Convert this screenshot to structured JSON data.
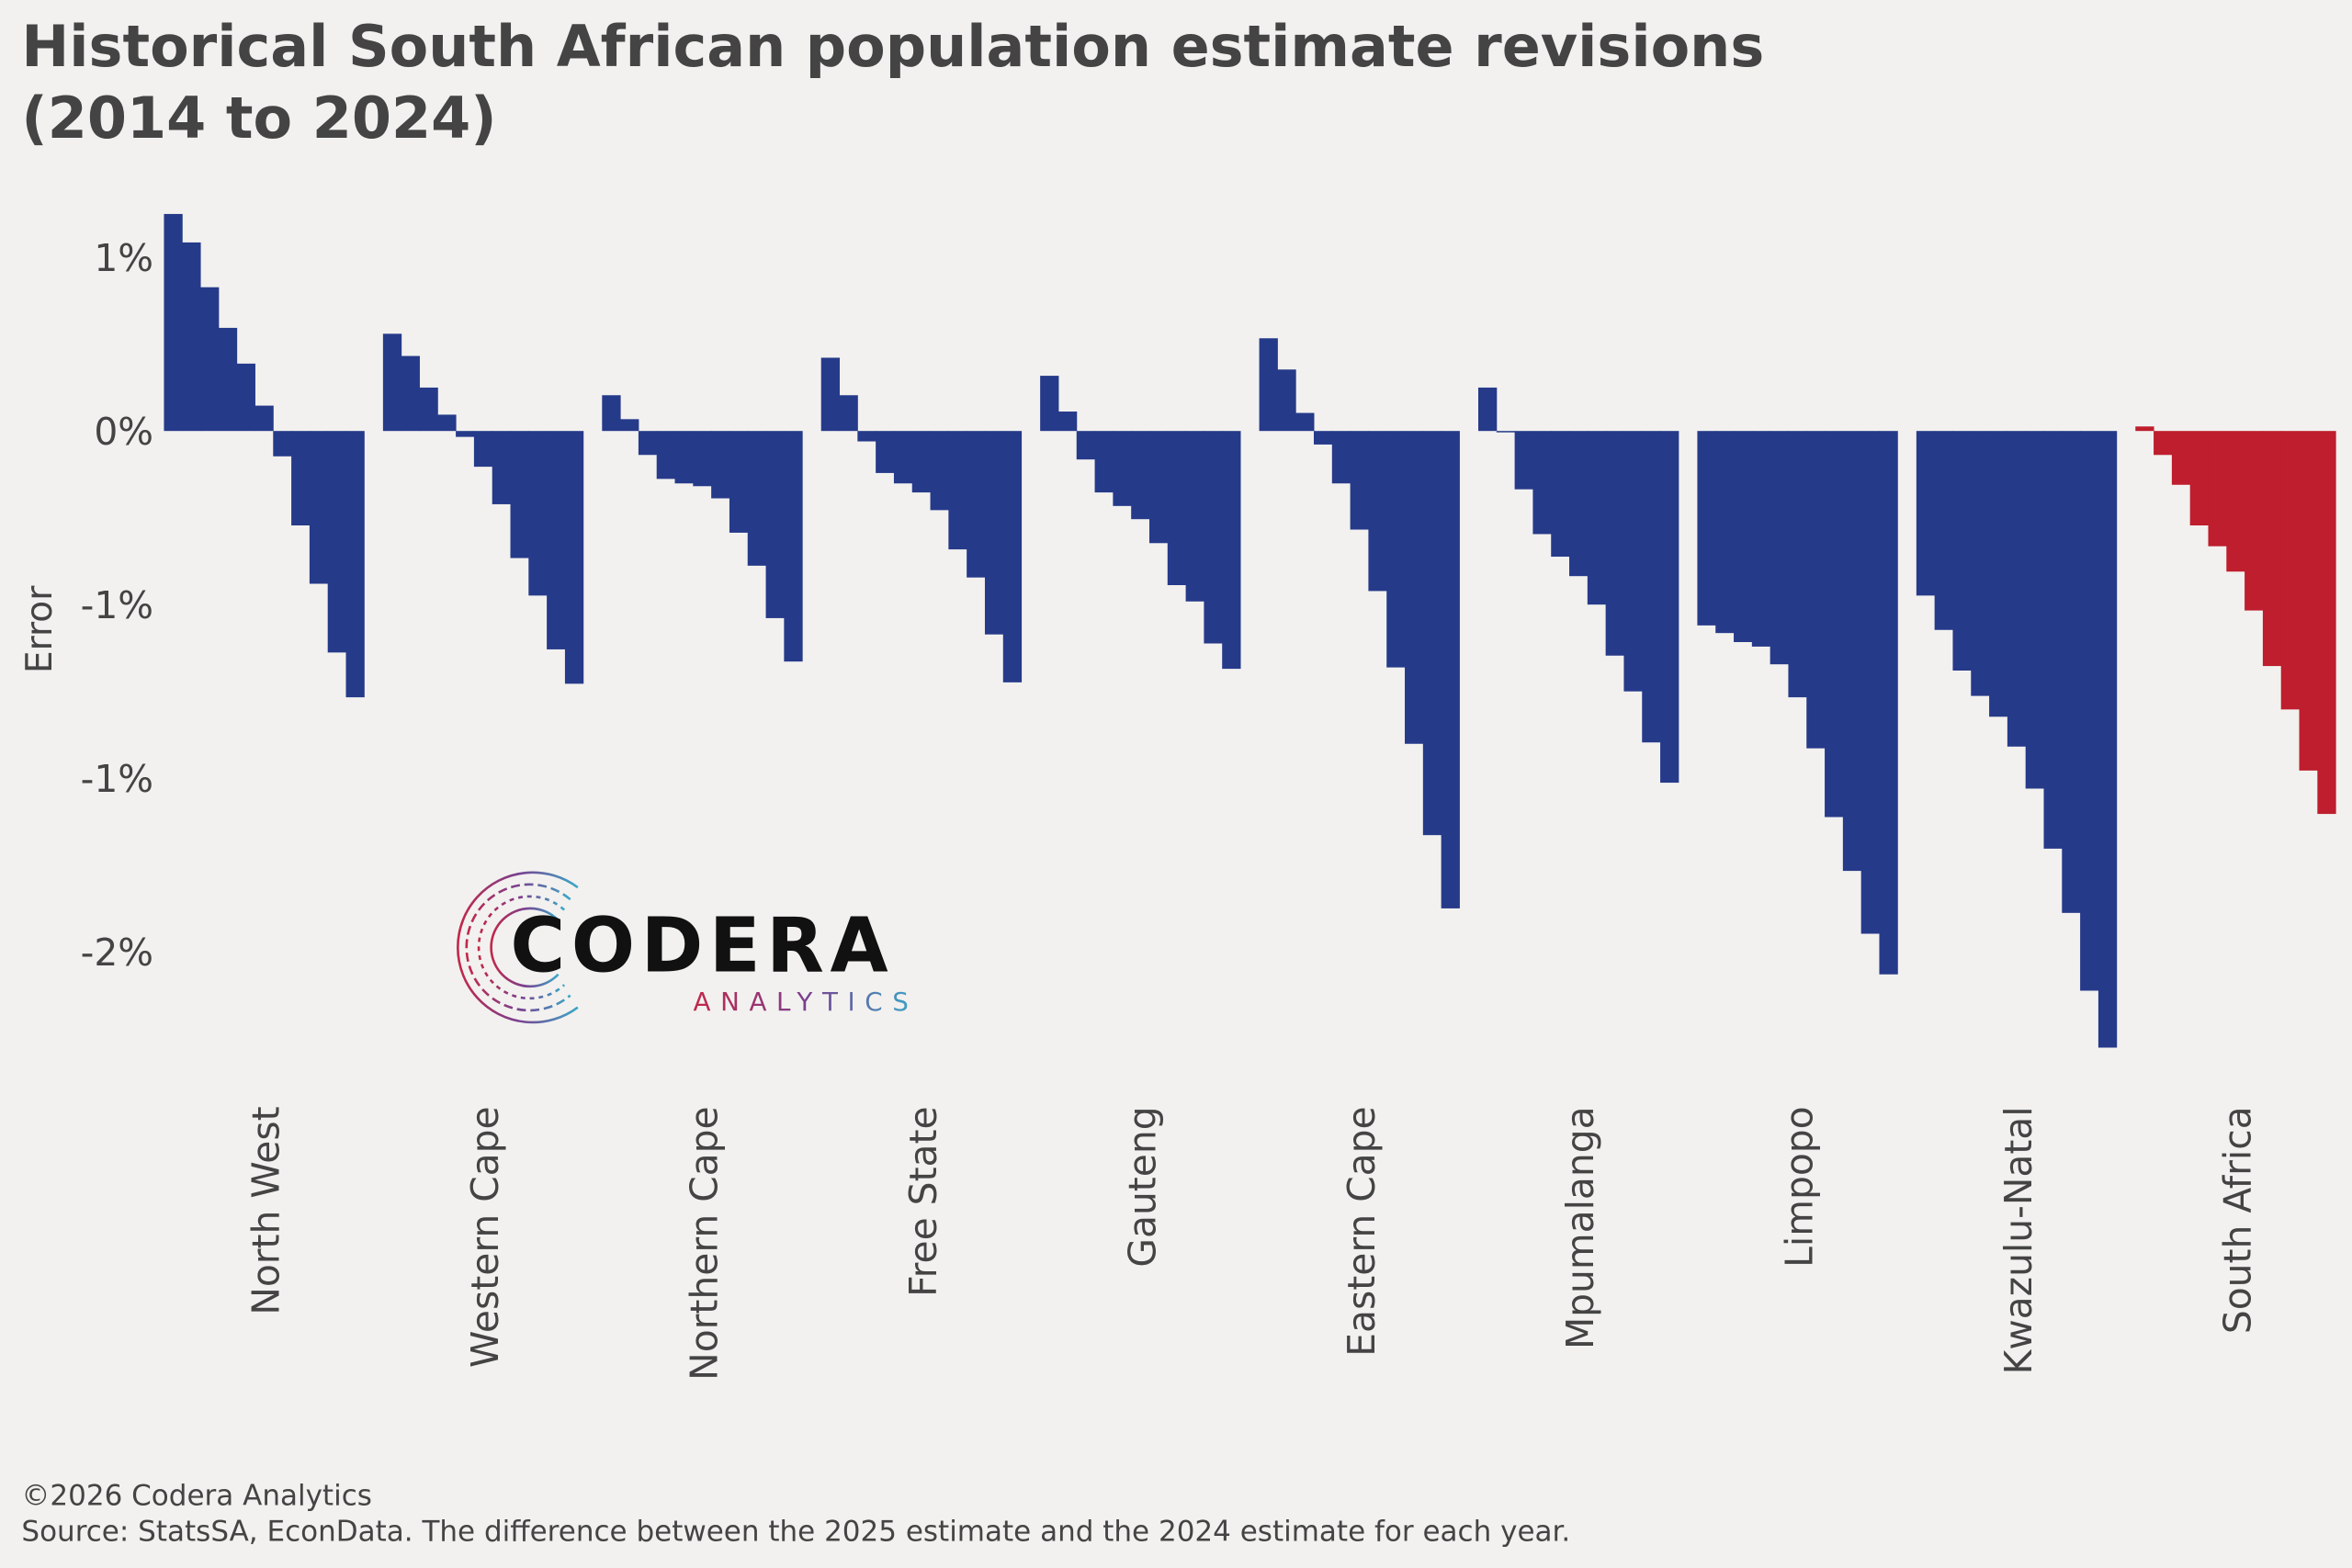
{
  "chart_data": {
    "type": "bar",
    "title": [
      "Historical South African population estimate revisions",
      "(2014 to 2024)"
    ],
    "y_label": "Error",
    "ylim": [
      -1.85,
      0.68
    ],
    "yticks": [
      {
        "value": 0.5,
        "label": "1%"
      },
      {
        "value": 0,
        "label": "0%"
      },
      {
        "value": -0.5,
        "label": "-1%"
      },
      {
        "value": -1,
        "label": "-1%"
      },
      {
        "value": -1.5,
        "label": "-2%"
      }
    ],
    "series": [
      {
        "name": "North West",
        "color": "#263a8a",
        "values": [
          0.625,
          0.543,
          0.414,
          0.297,
          0.194,
          0.073,
          -0.073,
          -0.272,
          -0.44,
          -0.638,
          -0.767
        ]
      },
      {
        "name": "Western Cape",
        "color": "#263a8a",
        "values": [
          0.28,
          0.216,
          0.125,
          0.047,
          -0.017,
          -0.103,
          -0.211,
          -0.366,
          -0.474,
          -0.629,
          -0.728
        ]
      },
      {
        "name": "Northern Cape",
        "color": "#263a8a",
        "values": [
          0.103,
          0.034,
          -0.069,
          -0.138,
          -0.151,
          -0.159,
          -0.194,
          -0.293,
          -0.388,
          -0.539,
          -0.664
        ]
      },
      {
        "name": "Free State",
        "color": "#263a8a",
        "values": [
          0.211,
          0.103,
          -0.03,
          -0.121,
          -0.151,
          -0.177,
          -0.228,
          -0.341,
          -0.422,
          -0.586,
          -0.724
        ]
      },
      {
        "name": "Gauteng",
        "color": "#263a8a",
        "values": [
          0.159,
          0.056,
          -0.082,
          -0.177,
          -0.216,
          -0.254,
          -0.323,
          -0.444,
          -0.491,
          -0.612,
          -0.685
        ]
      },
      {
        "name": "Eastern Cape",
        "color": "#263a8a",
        "values": [
          0.267,
          0.177,
          0.052,
          -0.039,
          -0.151,
          -0.284,
          -0.461,
          -0.681,
          -0.901,
          -1.164,
          -1.375
        ]
      },
      {
        "name": "Mpumalanga",
        "color": "#263a8a",
        "values": [
          0.125,
          -0.004,
          -0.168,
          -0.297,
          -0.362,
          -0.418,
          -0.5,
          -0.647,
          -0.75,
          -0.897,
          -1.013
        ]
      },
      {
        "name": "Limpopo",
        "color": "#263a8a",
        "values": [
          -0.56,
          -0.582,
          -0.608,
          -0.621,
          -0.672,
          -0.767,
          -0.914,
          -1.112,
          -1.267,
          -1.448,
          -1.565
        ]
      },
      {
        "name": "Kwazulu-Natal",
        "color": "#263a8a",
        "values": [
          -0.474,
          -0.573,
          -0.69,
          -0.763,
          -0.823,
          -0.909,
          -1.03,
          -1.203,
          -1.388,
          -1.612,
          -1.776
        ]
      },
      {
        "name": "South Africa",
        "color": "#be1e2d",
        "values": [
          0.013,
          -0.069,
          -0.155,
          -0.272,
          -0.332,
          -0.405,
          -0.517,
          -0.677,
          -0.802,
          -0.978,
          -1.103
        ]
      }
    ]
  },
  "logo": {
    "name": "CODERA",
    "tagline": "ANALYTICS"
  },
  "footer": {
    "copyright": "©2026 Codera Analytics",
    "source": "Source: StatsSA, EconData. The difference between the 2025 estimate and the 2024 estimate for each year."
  }
}
